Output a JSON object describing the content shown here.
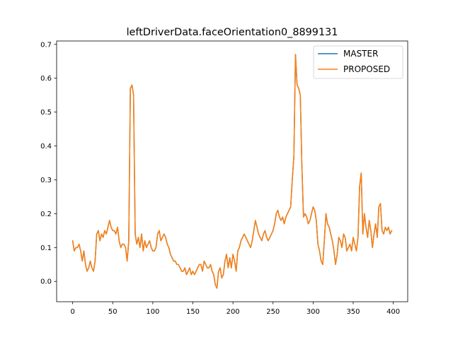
{
  "chart_data": {
    "type": "line",
    "title": "leftDriverData.faceOrientation0_8899131",
    "xlabel": "",
    "ylabel": "",
    "xlim": [
      -20,
      418
    ],
    "ylim": [
      -0.06,
      0.71
    ],
    "x_ticks": [
      0,
      50,
      100,
      150,
      200,
      250,
      300,
      350,
      400
    ],
    "y_ticks": [
      0.0,
      0.1,
      0.2,
      0.3,
      0.4,
      0.5,
      0.6,
      0.7
    ],
    "legend_position": "top-right",
    "grid": false,
    "series": [
      {
        "name": "MASTER",
        "color": "#1f77b4",
        "x": [
          0,
          2,
          4,
          6,
          8,
          10,
          12,
          14,
          16,
          18,
          20,
          22,
          24,
          26,
          28,
          30,
          32,
          34,
          36,
          38,
          40,
          42,
          44,
          46,
          48,
          50,
          52,
          54,
          56,
          58,
          60,
          62,
          64,
          66,
          68,
          70,
          72,
          74,
          76,
          78,
          80,
          82,
          84,
          86,
          88,
          90,
          92,
          94,
          96,
          98,
          100,
          102,
          104,
          106,
          108,
          110,
          112,
          114,
          116,
          118,
          120,
          122,
          124,
          126,
          128,
          130,
          132,
          134,
          136,
          138,
          140,
          142,
          144,
          146,
          148,
          150,
          152,
          154,
          156,
          158,
          160,
          162,
          164,
          166,
          168,
          170,
          172,
          174,
          176,
          178,
          180,
          182,
          184,
          186,
          188,
          190,
          192,
          194,
          196,
          198,
          200,
          202,
          204,
          206,
          208,
          210,
          212,
          214,
          216,
          218,
          220,
          222,
          224,
          226,
          228,
          230,
          232,
          234,
          236,
          238,
          240,
          242,
          244,
          246,
          248,
          250,
          252,
          254,
          256,
          258,
          260,
          262,
          264,
          266,
          268,
          270,
          272,
          274,
          276,
          278,
          280,
          282,
          284,
          286,
          288,
          290,
          292,
          294,
          296,
          298,
          300,
          302,
          304,
          306,
          308,
          310,
          312,
          314,
          316,
          318,
          320,
          322,
          324,
          326,
          328,
          330,
          332,
          334,
          336,
          338,
          340,
          342,
          344,
          346,
          348,
          350,
          352,
          354,
          356,
          358,
          360,
          362,
          364,
          366,
          368,
          370,
          372,
          374,
          376,
          378,
          380,
          382,
          384,
          386,
          388,
          390,
          392,
          394,
          396,
          398
        ],
        "values": [
          0.12,
          0.09,
          0.1,
          0.1,
          0.11,
          0.09,
          0.06,
          0.09,
          0.05,
          0.03,
          0.04,
          0.06,
          0.04,
          0.03,
          0.06,
          0.14,
          0.15,
          0.12,
          0.14,
          0.13,
          0.15,
          0.14,
          0.16,
          0.18,
          0.16,
          0.15,
          0.15,
          0.14,
          0.16,
          0.12,
          0.1,
          0.11,
          0.11,
          0.1,
          0.06,
          0.12,
          0.57,
          0.58,
          0.55,
          0.14,
          0.11,
          0.13,
          0.1,
          0.14,
          0.09,
          0.12,
          0.1,
          0.11,
          0.12,
          0.1,
          0.09,
          0.09,
          0.1,
          0.14,
          0.15,
          0.12,
          0.13,
          0.14,
          0.13,
          0.11,
          0.1,
          0.08,
          0.07,
          0.06,
          0.06,
          0.05,
          0.05,
          0.04,
          0.03,
          0.03,
          0.04,
          0.02,
          0.03,
          0.04,
          0.02,
          0.03,
          0.02,
          0.03,
          0.04,
          0.05,
          0.05,
          0.03,
          0.06,
          0.05,
          0.04,
          0.04,
          0.05,
          0.03,
          0.02,
          -0.01,
          -0.02,
          0.03,
          0.04,
          0.01,
          0.02,
          0.06,
          0.08,
          0.04,
          0.07,
          0.04,
          0.08,
          0.06,
          0.03,
          0.09,
          0.1,
          0.12,
          0.13,
          0.14,
          0.13,
          0.12,
          0.11,
          0.1,
          0.12,
          0.15,
          0.18,
          0.16,
          0.14,
          0.13,
          0.12,
          0.14,
          0.15,
          0.13,
          0.12,
          0.13,
          0.14,
          0.15,
          0.17,
          0.2,
          0.21,
          0.19,
          0.18,
          0.19,
          0.17,
          0.19,
          0.2,
          0.21,
          0.22,
          0.3,
          0.37,
          0.67,
          0.58,
          0.57,
          0.55,
          0.34,
          0.19,
          0.2,
          0.19,
          0.17,
          0.18,
          0.2,
          0.22,
          0.21,
          0.18,
          0.11,
          0.09,
          0.06,
          0.05,
          0.12,
          0.2,
          0.17,
          0.16,
          0.14,
          0.12,
          0.09,
          0.05,
          0.08,
          0.13,
          0.12,
          0.1,
          0.14,
          0.13,
          0.09,
          0.1,
          0.11,
          0.09,
          0.13,
          0.11,
          0.09,
          0.13,
          0.28,
          0.32,
          0.14,
          0.2,
          0.16,
          0.13,
          0.18,
          0.15,
          0.1,
          0.14,
          0.17,
          0.13,
          0.22,
          0.23,
          0.15,
          0.14,
          0.16,
          0.15,
          0.16,
          0.14,
          0.15
        ]
      },
      {
        "name": "PROPOSED",
        "color": "#ff7f0e",
        "x": [
          0,
          2,
          4,
          6,
          8,
          10,
          12,
          14,
          16,
          18,
          20,
          22,
          24,
          26,
          28,
          30,
          32,
          34,
          36,
          38,
          40,
          42,
          44,
          46,
          48,
          50,
          52,
          54,
          56,
          58,
          60,
          62,
          64,
          66,
          68,
          70,
          72,
          74,
          76,
          78,
          80,
          82,
          84,
          86,
          88,
          90,
          92,
          94,
          96,
          98,
          100,
          102,
          104,
          106,
          108,
          110,
          112,
          114,
          116,
          118,
          120,
          122,
          124,
          126,
          128,
          130,
          132,
          134,
          136,
          138,
          140,
          142,
          144,
          146,
          148,
          150,
          152,
          154,
          156,
          158,
          160,
          162,
          164,
          166,
          168,
          170,
          172,
          174,
          176,
          178,
          180,
          182,
          184,
          186,
          188,
          190,
          192,
          194,
          196,
          198,
          200,
          202,
          204,
          206,
          208,
          210,
          212,
          214,
          216,
          218,
          220,
          222,
          224,
          226,
          228,
          230,
          232,
          234,
          236,
          238,
          240,
          242,
          244,
          246,
          248,
          250,
          252,
          254,
          256,
          258,
          260,
          262,
          264,
          266,
          268,
          270,
          272,
          274,
          276,
          278,
          280,
          282,
          284,
          286,
          288,
          290,
          292,
          294,
          296,
          298,
          300,
          302,
          304,
          306,
          308,
          310,
          312,
          314,
          316,
          318,
          320,
          322,
          324,
          326,
          328,
          330,
          332,
          334,
          336,
          338,
          340,
          342,
          344,
          346,
          348,
          350,
          352,
          354,
          356,
          358,
          360,
          362,
          364,
          366,
          368,
          370,
          372,
          374,
          376,
          378,
          380,
          382,
          384,
          386,
          388,
          390,
          392,
          394,
          396,
          398
        ],
        "values": [
          0.12,
          0.09,
          0.1,
          0.1,
          0.11,
          0.09,
          0.06,
          0.09,
          0.05,
          0.03,
          0.04,
          0.06,
          0.04,
          0.03,
          0.06,
          0.14,
          0.15,
          0.12,
          0.14,
          0.13,
          0.15,
          0.14,
          0.16,
          0.18,
          0.16,
          0.15,
          0.15,
          0.14,
          0.16,
          0.12,
          0.1,
          0.11,
          0.11,
          0.1,
          0.06,
          0.12,
          0.57,
          0.58,
          0.55,
          0.14,
          0.11,
          0.13,
          0.1,
          0.14,
          0.09,
          0.12,
          0.1,
          0.11,
          0.12,
          0.1,
          0.09,
          0.09,
          0.1,
          0.14,
          0.15,
          0.12,
          0.13,
          0.14,
          0.13,
          0.11,
          0.1,
          0.08,
          0.07,
          0.06,
          0.06,
          0.05,
          0.05,
          0.04,
          0.03,
          0.03,
          0.04,
          0.02,
          0.03,
          0.04,
          0.02,
          0.03,
          0.02,
          0.03,
          0.04,
          0.05,
          0.05,
          0.03,
          0.06,
          0.05,
          0.04,
          0.04,
          0.05,
          0.03,
          0.02,
          -0.01,
          -0.02,
          0.03,
          0.04,
          0.01,
          0.02,
          0.06,
          0.08,
          0.04,
          0.07,
          0.04,
          0.08,
          0.06,
          0.03,
          0.09,
          0.1,
          0.12,
          0.13,
          0.14,
          0.13,
          0.12,
          0.11,
          0.1,
          0.12,
          0.15,
          0.18,
          0.16,
          0.14,
          0.13,
          0.12,
          0.14,
          0.15,
          0.13,
          0.12,
          0.13,
          0.14,
          0.15,
          0.17,
          0.2,
          0.21,
          0.19,
          0.18,
          0.19,
          0.17,
          0.19,
          0.2,
          0.21,
          0.22,
          0.3,
          0.37,
          0.67,
          0.58,
          0.57,
          0.55,
          0.34,
          0.19,
          0.2,
          0.19,
          0.17,
          0.18,
          0.2,
          0.22,
          0.21,
          0.18,
          0.11,
          0.09,
          0.06,
          0.05,
          0.12,
          0.2,
          0.17,
          0.16,
          0.14,
          0.12,
          0.09,
          0.05,
          0.08,
          0.13,
          0.12,
          0.1,
          0.14,
          0.13,
          0.09,
          0.1,
          0.11,
          0.09,
          0.13,
          0.11,
          0.09,
          0.13,
          0.28,
          0.32,
          0.14,
          0.2,
          0.16,
          0.13,
          0.18,
          0.15,
          0.1,
          0.14,
          0.17,
          0.13,
          0.22,
          0.23,
          0.15,
          0.14,
          0.16,
          0.15,
          0.16,
          0.14,
          0.15
        ]
      }
    ]
  }
}
